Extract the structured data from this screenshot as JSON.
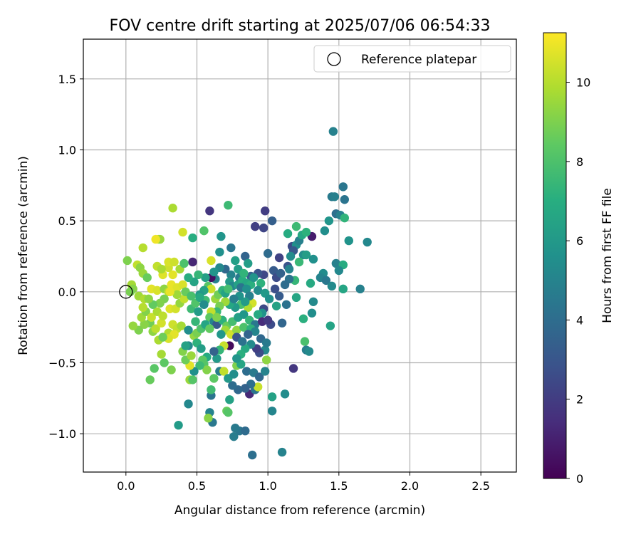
{
  "chart_data": {
    "type": "scatter",
    "title": "FOV centre drift starting at 2025/07/06 06:54:33",
    "xlabel": "Angular distance from reference (arcmin)",
    "ylabel": "Rotation from reference (arcmin)",
    "colorbar_label": "Hours from first FF file",
    "xlim": [
      -0.3,
      2.75
    ],
    "ylim": [
      -1.27,
      1.78
    ],
    "x_ticks": [
      0.0,
      0.5,
      1.0,
      1.5,
      2.0,
      2.5
    ],
    "x_tick_labels": [
      "0.0",
      "0.5",
      "1.0",
      "1.5",
      "2.0",
      "2.5"
    ],
    "y_ticks": [
      -1.0,
      -0.5,
      0.0,
      0.5,
      1.0,
      1.5
    ],
    "y_tick_labels": [
      "−1.0",
      "−0.5",
      "0.0",
      "0.5",
      "1.0",
      "1.5"
    ],
    "colorbar_range": [
      0,
      11.25
    ],
    "colorbar_ticks": [
      0,
      2,
      4,
      6,
      8,
      10
    ],
    "colorbar_tick_labels": [
      "0",
      "2",
      "4",
      "6",
      "8",
      "10"
    ],
    "colormap": "viridis",
    "grid": true,
    "legend": {
      "placement": "top-right",
      "entries": [
        "Reference platepar"
      ]
    },
    "reference_point": {
      "x": 0.0,
      "y": 0.0
    },
    "points": [
      [
        0.47,
        0.21,
        1.2
      ],
      [
        0.59,
        0.57,
        1.8
      ],
      [
        0.98,
        0.57,
        2.0
      ],
      [
        0.97,
        0.45,
        2.3
      ],
      [
        1.03,
        0.5,
        3.4
      ],
      [
        0.91,
        0.46,
        2.1
      ],
      [
        1.31,
        0.39,
        0.9
      ],
      [
        1.17,
        0.32,
        2.5
      ],
      [
        1.08,
        0.24,
        2.2
      ],
      [
        1.0,
        0.27,
        3.9
      ],
      [
        1.46,
        1.13,
        4.9
      ],
      [
        1.53,
        0.74,
        4.4
      ],
      [
        1.45,
        0.67,
        4.6
      ],
      [
        1.47,
        0.67,
        4.8
      ],
      [
        1.54,
        0.65,
        4.3
      ],
      [
        1.48,
        0.55,
        4.1
      ],
      [
        1.51,
        0.54,
        4.9
      ],
      [
        1.54,
        0.52,
        7.3
      ],
      [
        1.43,
        0.5,
        5.8
      ],
      [
        1.4,
        0.43,
        5.5
      ],
      [
        1.57,
        0.36,
        5.7
      ],
      [
        1.7,
        0.35,
        5.2
      ],
      [
        1.48,
        0.2,
        4.9
      ],
      [
        1.53,
        0.19,
        6.9
      ],
      [
        1.5,
        0.15,
        5.2
      ],
      [
        1.39,
        0.13,
        5.4
      ],
      [
        1.37,
        0.1,
        5.0
      ],
      [
        1.41,
        0.08,
        4.5
      ],
      [
        1.45,
        0.04,
        5.3
      ],
      [
        1.53,
        0.02,
        6.6
      ],
      [
        1.65,
        0.02,
        4.9
      ],
      [
        1.25,
        0.26,
        5.5
      ],
      [
        1.27,
        0.26,
        6.2
      ],
      [
        1.32,
        0.23,
        5.6
      ],
      [
        1.22,
        0.21,
        7.5
      ],
      [
        1.14,
        0.18,
        2.9
      ],
      [
        1.04,
        0.15,
        3.2
      ],
      [
        1.06,
        0.1,
        2.6
      ],
      [
        1.09,
        0.13,
        3.5
      ],
      [
        0.97,
        0.12,
        2.4
      ],
      [
        0.93,
        0.13,
        2.9
      ],
      [
        0.88,
        0.11,
        3.5
      ],
      [
        0.84,
        0.25,
        3.6
      ],
      [
        0.79,
        0.16,
        6.2
      ],
      [
        0.77,
        0.22,
        6.3
      ],
      [
        0.8,
        0.1,
        4.6
      ],
      [
        0.74,
        0.12,
        5.0
      ],
      [
        0.73,
        0.07,
        6.0
      ],
      [
        0.7,
        0.16,
        3.8
      ],
      [
        0.66,
        0.28,
        5.6
      ],
      [
        0.67,
        0.39,
        5.8
      ],
      [
        0.72,
        0.61,
        7.6
      ],
      [
        0.55,
        0.43,
        8.1
      ],
      [
        0.47,
        0.38,
        7.0
      ],
      [
        0.4,
        0.42,
        10.5
      ],
      [
        0.33,
        0.59,
        9.8
      ],
      [
        0.23,
        0.37,
        10.1
      ],
      [
        0.24,
        0.37,
        9.5
      ],
      [
        0.21,
        0.37,
        11.0
      ],
      [
        0.12,
        0.31,
        10.0
      ],
      [
        0.01,
        0.22,
        9.0
      ],
      [
        0.08,
        0.19,
        10.2
      ],
      [
        0.1,
        0.17,
        9.3
      ],
      [
        0.12,
        0.13,
        9.5
      ],
      [
        0.15,
        0.1,
        8.6
      ],
      [
        0.04,
        0.05,
        9.7
      ],
      [
        0.05,
        0.02,
        9.2
      ],
      [
        0.03,
        0.0,
        8.9
      ],
      [
        0.09,
        -0.03,
        9.6
      ],
      [
        0.13,
        -0.05,
        9.9
      ],
      [
        0.18,
        0.02,
        10.8
      ],
      [
        0.22,
        0.01,
        10.6
      ],
      [
        0.27,
        0.02,
        9.3
      ],
      [
        0.3,
        0.0,
        10.1
      ],
      [
        0.32,
        0.05,
        10.9
      ],
      [
        0.36,
        0.03,
        10.7
      ],
      [
        0.4,
        0.05,
        10.6
      ],
      [
        0.33,
        0.12,
        10.8
      ],
      [
        0.3,
        0.17,
        10.4
      ],
      [
        0.26,
        0.12,
        10.7
      ],
      [
        0.22,
        0.18,
        10.2
      ],
      [
        0.25,
        0.16,
        9.8
      ],
      [
        0.3,
        0.21,
        10.6
      ],
      [
        0.34,
        0.21,
        10.4
      ],
      [
        0.38,
        0.16,
        9.7
      ],
      [
        0.6,
        0.22,
        10.6
      ],
      [
        0.63,
        0.09,
        5.0
      ],
      [
        0.6,
        0.1,
        0.5
      ],
      [
        0.58,
        0.04,
        8.2
      ],
      [
        0.6,
        0.02,
        10.4
      ],
      [
        0.55,
        0.01,
        6.4
      ],
      [
        0.52,
        -0.02,
        6.0
      ],
      [
        0.56,
        -0.06,
        7.7
      ],
      [
        0.63,
        -0.05,
        9.5
      ],
      [
        0.65,
        -0.02,
        8.8
      ],
      [
        0.68,
        0.01,
        7.3
      ],
      [
        0.7,
        -0.01,
        6.5
      ],
      [
        0.75,
        0.04,
        5.2
      ],
      [
        0.79,
        0.05,
        6.4
      ],
      [
        0.82,
        0.08,
        7.0
      ],
      [
        0.85,
        0.06,
        6.7
      ],
      [
        0.88,
        0.05,
        7.1
      ],
      [
        0.9,
        0.1,
        5.8
      ],
      [
        0.95,
        0.06,
        7.2
      ],
      [
        0.93,
        0.01,
        5.4
      ],
      [
        0.98,
        -0.01,
        6.0
      ],
      [
        1.01,
        -0.05,
        5.6
      ],
      [
        0.97,
        -0.12,
        2.5
      ],
      [
        0.96,
        -0.15,
        5.7
      ],
      [
        0.93,
        -0.16,
        6.8
      ],
      [
        0.89,
        -0.08,
        10.5
      ],
      [
        0.86,
        -0.11,
        9.9
      ],
      [
        0.81,
        -0.09,
        7.9
      ],
      [
        0.77,
        -0.11,
        6.0
      ],
      [
        0.73,
        -0.09,
        6.7
      ],
      [
        0.7,
        -0.07,
        9.6
      ],
      [
        0.66,
        -0.1,
        8.9
      ],
      [
        0.64,
        -0.14,
        7.5
      ],
      [
        0.6,
        -0.14,
        10.2
      ],
      [
        0.59,
        -0.18,
        8.4
      ],
      [
        0.62,
        -0.21,
        5.1
      ],
      [
        0.64,
        -0.23,
        3.2
      ],
      [
        0.68,
        -0.2,
        7.2
      ],
      [
        0.71,
        -0.24,
        8.6
      ],
      [
        0.75,
        -0.21,
        7.8
      ],
      [
        0.79,
        -0.18,
        6.3
      ],
      [
        0.83,
        -0.16,
        5.9
      ],
      [
        0.87,
        -0.2,
        7.4
      ],
      [
        0.91,
        -0.23,
        4.5
      ],
      [
        0.96,
        -0.21,
        1.4
      ],
      [
        1.02,
        -0.23,
        2.6
      ],
      [
        1.1,
        -0.22,
        3.7
      ],
      [
        1.06,
        -0.1,
        6.4
      ],
      [
        1.13,
        -0.09,
        4.2
      ],
      [
        1.2,
        -0.04,
        6.6
      ],
      [
        1.19,
        0.08,
        7.4
      ],
      [
        1.15,
        0.09,
        4.2
      ],
      [
        1.3,
        0.06,
        6.8
      ],
      [
        1.32,
        -0.07,
        5.3
      ],
      [
        1.31,
        -0.15,
        5.5
      ],
      [
        1.25,
        -0.19,
        7.1
      ],
      [
        1.44,
        -0.24,
        6.5
      ],
      [
        1.26,
        -0.35,
        7.9
      ],
      [
        1.27,
        -0.41,
        4.8
      ],
      [
        1.29,
        -0.42,
        5.3
      ],
      [
        1.18,
        -0.54,
        1.8
      ],
      [
        1.12,
        -0.72,
        5.4
      ],
      [
        1.03,
        -0.74,
        6.4
      ],
      [
        1.03,
        -0.84,
        5.1
      ],
      [
        1.1,
        -1.13,
        5.0
      ],
      [
        0.89,
        -1.15,
        4.1
      ],
      [
        0.8,
        -0.98,
        4.4
      ],
      [
        0.77,
        -0.96,
        4.6
      ],
      [
        0.76,
        -1.02,
        4.7
      ],
      [
        0.84,
        -0.98,
        3.9
      ],
      [
        0.87,
        -0.72,
        1.3
      ],
      [
        0.91,
        -0.69,
        4.3
      ],
      [
        0.93,
        -0.67,
        10.3
      ],
      [
        0.88,
        -0.65,
        4.1
      ],
      [
        0.84,
        -0.68,
        3.5
      ],
      [
        0.79,
        -0.69,
        3.8
      ],
      [
        0.75,
        -0.66,
        4.0
      ],
      [
        0.73,
        -0.76,
        6.4
      ],
      [
        0.71,
        -0.84,
        8.6
      ],
      [
        0.72,
        -0.85,
        8.2
      ],
      [
        0.59,
        -0.85,
        5.0
      ],
      [
        0.61,
        -0.92,
        4.5
      ],
      [
        0.58,
        -0.89,
        9.2
      ],
      [
        0.6,
        -0.73,
        4.3
      ],
      [
        0.6,
        -0.69,
        7.7
      ],
      [
        0.62,
        -0.61,
        8.4
      ],
      [
        0.66,
        -0.56,
        4.7
      ],
      [
        0.69,
        -0.56,
        10.2
      ],
      [
        0.72,
        -0.61,
        6.0
      ],
      [
        0.76,
        -0.58,
        5.5
      ],
      [
        0.78,
        -0.52,
        9.0
      ],
      [
        0.81,
        -0.51,
        6.6
      ],
      [
        0.85,
        -0.56,
        4.0
      ],
      [
        0.9,
        -0.57,
        4.6
      ],
      [
        0.94,
        -0.6,
        3.8
      ],
      [
        0.98,
        -0.56,
        5.0
      ],
      [
        0.99,
        -0.48,
        9.3
      ],
      [
        0.98,
        -0.41,
        5.2
      ],
      [
        0.94,
        -0.43,
        2.6
      ],
      [
        0.92,
        -0.4,
        2.1
      ],
      [
        0.88,
        -0.37,
        5.3
      ],
      [
        0.84,
        -0.4,
        6.8
      ],
      [
        0.81,
        -0.44,
        7.1
      ],
      [
        0.78,
        -0.47,
        5.8
      ],
      [
        0.73,
        -0.38,
        0.3
      ],
      [
        0.69,
        -0.38,
        10.3
      ],
      [
        0.66,
        -0.41,
        7.4
      ],
      [
        0.64,
        -0.47,
        6.0
      ],
      [
        0.62,
        -0.42,
        3.5
      ],
      [
        0.57,
        -0.46,
        6.9
      ],
      [
        0.54,
        -0.48,
        8.4
      ],
      [
        0.55,
        -0.51,
        8.2
      ],
      [
        0.57,
        -0.55,
        9.1
      ],
      [
        0.52,
        -0.52,
        7.6
      ],
      [
        0.48,
        -0.56,
        5.6
      ],
      [
        0.45,
        -0.52,
        10.8
      ],
      [
        0.42,
        -0.48,
        8.7
      ],
      [
        0.4,
        -0.42,
        9.1
      ],
      [
        0.44,
        -0.38,
        5.3
      ],
      [
        0.46,
        -0.45,
        9.5
      ],
      [
        0.48,
        -0.31,
        9.4
      ],
      [
        0.5,
        -0.29,
        8.9
      ],
      [
        0.53,
        -0.26,
        8.0
      ],
      [
        0.56,
        -0.23,
        6.6
      ],
      [
        0.59,
        -0.26,
        8.5
      ],
      [
        0.7,
        -0.27,
        9.6
      ],
      [
        0.74,
        -0.3,
        10.5
      ],
      [
        0.78,
        -0.27,
        9.4
      ],
      [
        0.83,
        -0.25,
        8.0
      ],
      [
        0.88,
        -0.26,
        7.2
      ],
      [
        0.91,
        -0.28,
        5.1
      ],
      [
        0.95,
        -0.33,
        3.8
      ],
      [
        0.99,
        -0.36,
        4.6
      ],
      [
        0.45,
        -0.62,
        9.5
      ],
      [
        0.47,
        -0.62,
        8.2
      ],
      [
        0.44,
        -0.79,
        5.2
      ],
      [
        0.37,
        -0.94,
        6.1
      ],
      [
        0.32,
        -0.55,
        9.0
      ],
      [
        0.27,
        -0.5,
        8.4
      ],
      [
        0.25,
        -0.44,
        9.7
      ],
      [
        0.2,
        -0.54,
        8.3
      ],
      [
        0.17,
        -0.62,
        8.6
      ],
      [
        0.23,
        -0.34,
        9.8
      ],
      [
        0.19,
        -0.28,
        9.3
      ],
      [
        0.17,
        -0.22,
        8.8
      ],
      [
        0.21,
        -0.26,
        10.1
      ],
      [
        0.25,
        -0.22,
        10.5
      ],
      [
        0.3,
        -0.29,
        9.9
      ],
      [
        0.33,
        -0.23,
        10.4
      ],
      [
        0.36,
        -0.26,
        10.2
      ],
      [
        0.39,
        -0.24,
        9.7
      ],
      [
        0.34,
        -0.3,
        10.8
      ],
      [
        0.3,
        -0.33,
        10.6
      ],
      [
        0.26,
        -0.32,
        8.7
      ],
      [
        0.13,
        -0.23,
        9.2
      ],
      [
        0.09,
        -0.27,
        9.0
      ],
      [
        0.05,
        -0.24,
        9.4
      ],
      [
        0.11,
        -0.18,
        9.6
      ],
      [
        0.14,
        -0.14,
        9.1
      ],
      [
        0.18,
        -0.18,
        10.3
      ],
      [
        0.22,
        -0.14,
        9.8
      ],
      [
        0.26,
        -0.17,
        10.1
      ],
      [
        0.31,
        -0.12,
        10.7
      ],
      [
        0.35,
        -0.12,
        10.5
      ],
      [
        0.38,
        -0.08,
        9.4
      ],
      [
        0.41,
        -0.05,
        10.2
      ],
      [
        0.36,
        -0.02,
        9.6
      ],
      [
        0.31,
        0.0,
        10.9
      ],
      [
        0.27,
        -0.05,
        8.9
      ],
      [
        0.24,
        -0.08,
        9.0
      ],
      [
        0.19,
        -0.09,
        8.5
      ],
      [
        0.16,
        -0.05,
        9.3
      ],
      [
        0.12,
        -0.11,
        10.0
      ],
      [
        0.44,
        -0.27,
        5.5
      ],
      [
        0.42,
        -0.38,
        6.4
      ],
      [
        0.5,
        -0.36,
        7.2
      ],
      [
        0.53,
        -0.4,
        6.2
      ],
      [
        0.46,
        -0.12,
        7.6
      ],
      [
        0.49,
        -0.08,
        8.1
      ],
      [
        0.52,
        -0.04,
        6.8
      ],
      [
        0.55,
        -0.09,
        5.4
      ],
      [
        0.51,
        -0.14,
        6.1
      ],
      [
        0.49,
        -0.21,
        7.4
      ],
      [
        0.64,
        -0.18,
        9.0
      ],
      [
        0.67,
        -0.3,
        5.9
      ],
      [
        0.81,
        0.03,
        4.3
      ],
      [
        0.85,
        0.02,
        5.6
      ],
      [
        0.87,
        -0.03,
        4.9
      ],
      [
        0.84,
        -0.07,
        6.1
      ],
      [
        0.8,
        -0.03,
        5.7
      ],
      [
        0.76,
        -0.05,
        4.8
      ],
      [
        0.72,
        0.02,
        7.8
      ],
      [
        0.78,
        -0.32,
        2.9
      ],
      [
        0.82,
        -0.35,
        4.2
      ],
      [
        0.86,
        -0.3,
        3.6
      ],
      [
        1.0,
        -0.2,
        1.9
      ],
      [
        1.05,
        0.02,
        2.7
      ],
      [
        1.08,
        -0.03,
        3.2
      ],
      [
        1.12,
        0.05,
        4.0
      ],
      [
        1.15,
        0.16,
        5.0
      ],
      [
        1.2,
        0.33,
        5.6
      ],
      [
        1.22,
        0.36,
        4.9
      ],
      [
        1.24,
        0.4,
        6.7
      ],
      [
        1.27,
        0.42,
        7.2
      ],
      [
        1.2,
        0.46,
        7.6
      ],
      [
        1.14,
        0.41,
        6.9
      ],
      [
        1.18,
        0.29,
        3.1
      ],
      [
        1.16,
        0.25,
        5.4
      ],
      [
        0.86,
        0.2,
        6.2
      ],
      [
        0.83,
        0.13,
        7.3
      ],
      [
        0.74,
        0.31,
        4.4
      ],
      [
        0.66,
        0.17,
        5.2
      ],
      [
        0.62,
        0.14,
        5.8
      ],
      [
        0.56,
        0.1,
        6.3
      ],
      [
        0.51,
        0.12,
        7.4
      ],
      [
        0.48,
        0.07,
        6.5
      ],
      [
        0.44,
        0.1,
        7.0
      ],
      [
        0.41,
        0.2,
        8.0
      ],
      [
        0.42,
        0.0,
        8.6
      ],
      [
        0.46,
        -0.03,
        7.9
      ]
    ]
  }
}
